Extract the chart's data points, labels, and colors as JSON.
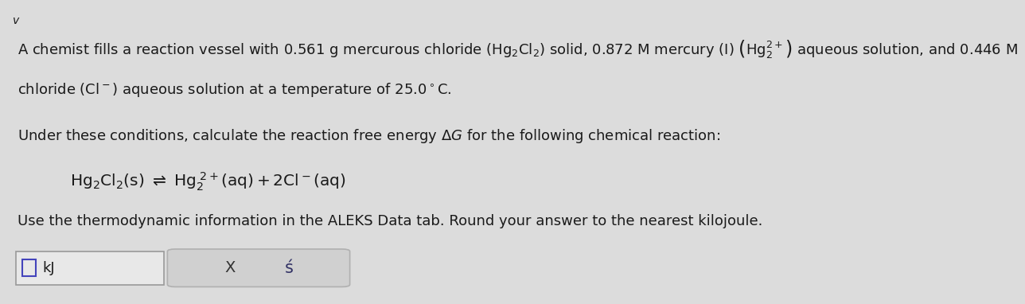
{
  "background_color": "#dcdcdc",
  "text_color": "#1a1a1a",
  "font_size_main": 13.0,
  "font_size_reaction": 14.5,
  "line1_text": "A chemist fills a reaction vessel with 0.561 g mercurous chloride $(\\mathrm{Hg_2Cl_2})$ solid, 0.872 M mercury (I) $\\left(\\mathrm{Hg_2^{2+}}\\right)$ aqueous solution, and 0.446 M",
  "line2_text": "chloride $\\left(\\mathrm{Cl^-}\\right)$ aqueous solution at a temperature of 25.0$^\\circ$C.",
  "line3_text": "Under these conditions, calculate the reaction free energy $\\Delta G$ for the following chemical reaction:",
  "reaction_text": "$\\mathrm{Hg_2Cl_2(s)}$ $\\rightleftharpoons$ $\\mathrm{Hg_2^{\\;2+}(aq) + 2Cl^-(aq)}$",
  "line4_text": "Use the thermodynamic information in the ALEKS Data tab. Round your answer to the nearest kilojoule.",
  "input_label": "kJ",
  "btn_x": "X",
  "btn_undo": "Ś",
  "checkbox_color": "#5555cc",
  "input_box_color": "#aaaaaa",
  "btn_bg_color": "#cccccc",
  "btn_edge_color": "#aaaaaa",
  "chevron": "v"
}
